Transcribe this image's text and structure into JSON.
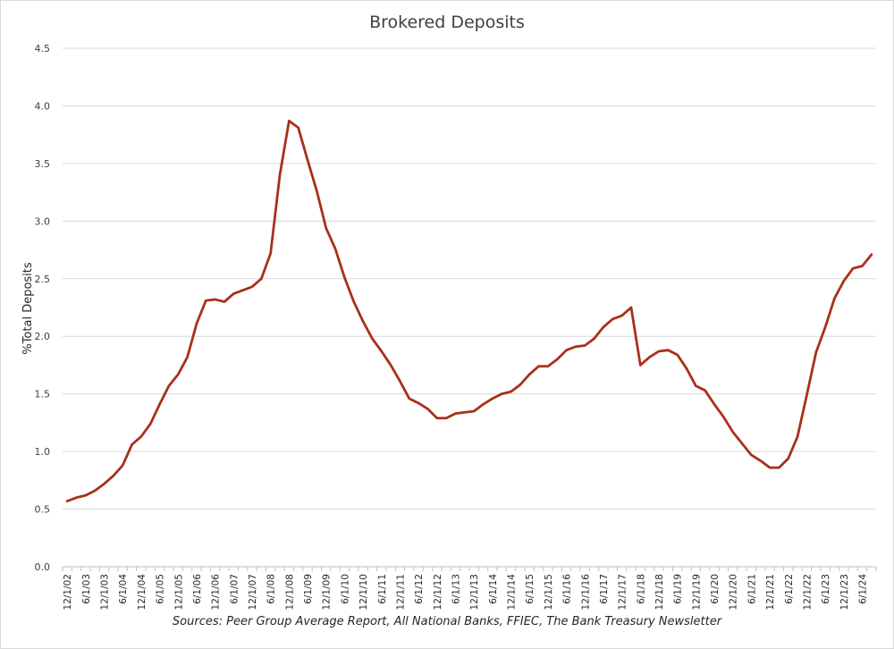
{
  "chart_data": {
    "type": "line",
    "title": "Brokered Deposits",
    "ylabel": "%Total Deposits",
    "xlabel": "",
    "source": "Sources: Peer Group Average Report, All National Banks, FFIEC, The Bank Treasury Newsletter",
    "ylim": [
      0,
      4.5
    ],
    "yticks": [
      "0.0",
      "0.5",
      "1.0",
      "1.5",
      "2.0",
      "2.5",
      "3.0",
      "3.5",
      "4.0",
      "4.5"
    ],
    "grid": true,
    "line_color": "#a8301a",
    "x": [
      "12/1/02",
      "3/1/03",
      "6/1/03",
      "9/1/03",
      "12/1/03",
      "3/1/04",
      "6/1/04",
      "9/1/04",
      "12/1/04",
      "3/1/05",
      "6/1/05",
      "9/1/05",
      "12/1/05",
      "3/1/06",
      "6/1/06",
      "9/1/06",
      "12/1/06",
      "3/1/07",
      "6/1/07",
      "9/1/07",
      "12/1/07",
      "3/1/08",
      "6/1/08",
      "9/1/08",
      "12/1/08",
      "3/1/09",
      "6/1/09",
      "9/1/09",
      "12/1/09",
      "3/1/10",
      "6/1/10",
      "9/1/10",
      "12/1/10",
      "3/1/11",
      "6/1/11",
      "9/1/11",
      "12/1/11",
      "3/1/12",
      "6/1/12",
      "9/1/12",
      "12/1/12",
      "3/1/13",
      "6/1/13",
      "9/1/13",
      "12/1/13",
      "3/1/14",
      "6/1/14",
      "9/1/14",
      "12/1/14",
      "3/1/15",
      "6/1/15",
      "9/1/15",
      "12/1/15",
      "3/1/16",
      "6/1/16",
      "9/1/16",
      "12/1/16",
      "3/1/17",
      "6/1/17",
      "9/1/17",
      "12/1/17",
      "3/1/18",
      "6/1/18",
      "9/1/18",
      "12/1/18",
      "3/1/19",
      "6/1/19",
      "9/1/19",
      "12/1/19",
      "3/1/20",
      "6/1/20",
      "9/1/20",
      "12/1/20",
      "3/1/21",
      "6/1/21",
      "9/1/21",
      "12/1/21",
      "3/1/22",
      "6/1/22",
      "9/1/22",
      "12/1/22",
      "3/1/23",
      "6/1/23",
      "9/1/23",
      "12/1/23",
      "3/1/24",
      "6/1/24",
      "9/1/24"
    ],
    "xtick_labels": [
      "12/1/02",
      "6/1/03",
      "12/1/03",
      "6/1/04",
      "12/1/04",
      "6/1/05",
      "12/1/05",
      "6/1/06",
      "12/1/06",
      "6/1/07",
      "12/1/07",
      "6/1/08",
      "12/1/08",
      "6/1/09",
      "12/1/09",
      "6/1/10",
      "12/1/10",
      "6/1/11",
      "12/1/11",
      "6/1/12",
      "12/1/12",
      "6/1/13",
      "12/1/13",
      "6/1/14",
      "12/1/14",
      "6/1/15",
      "12/1/15",
      "6/1/16",
      "12/1/16",
      "6/1/17",
      "12/1/17",
      "6/1/18",
      "12/1/18",
      "6/1/19",
      "12/1/19",
      "6/1/20",
      "12/1/20",
      "6/1/21",
      "12/1/21",
      "6/1/22",
      "12/1/22",
      "6/1/23",
      "12/1/23",
      "6/1/24"
    ],
    "series": [
      {
        "name": "",
        "values": [
          0.57,
          0.6,
          0.62,
          0.66,
          0.72,
          0.79,
          0.88,
          1.06,
          1.13,
          1.24,
          1.41,
          1.57,
          1.67,
          1.82,
          2.11,
          2.31,
          2.32,
          2.3,
          2.37,
          2.4,
          2.43,
          2.5,
          2.72,
          3.4,
          3.87,
          3.81,
          3.53,
          3.26,
          2.94,
          2.76,
          2.51,
          2.3,
          2.13,
          1.98,
          1.87,
          1.75,
          1.61,
          1.46,
          1.42,
          1.37,
          1.29,
          1.29,
          1.33,
          1.34,
          1.35,
          1.41,
          1.46,
          1.5,
          1.52,
          1.58,
          1.67,
          1.74,
          1.74,
          1.8,
          1.88,
          1.91,
          1.92,
          1.98,
          2.08,
          2.15,
          2.18,
          2.25,
          1.75,
          1.82,
          1.87,
          1.88,
          1.84,
          1.72,
          1.57,
          1.53,
          1.41,
          1.3,
          1.17,
          1.07,
          0.97,
          0.92,
          0.86,
          0.86,
          0.94,
          1.13,
          1.49,
          1.86,
          2.08,
          2.33,
          2.48,
          2.59,
          2.61,
          2.71
        ]
      }
    ]
  }
}
